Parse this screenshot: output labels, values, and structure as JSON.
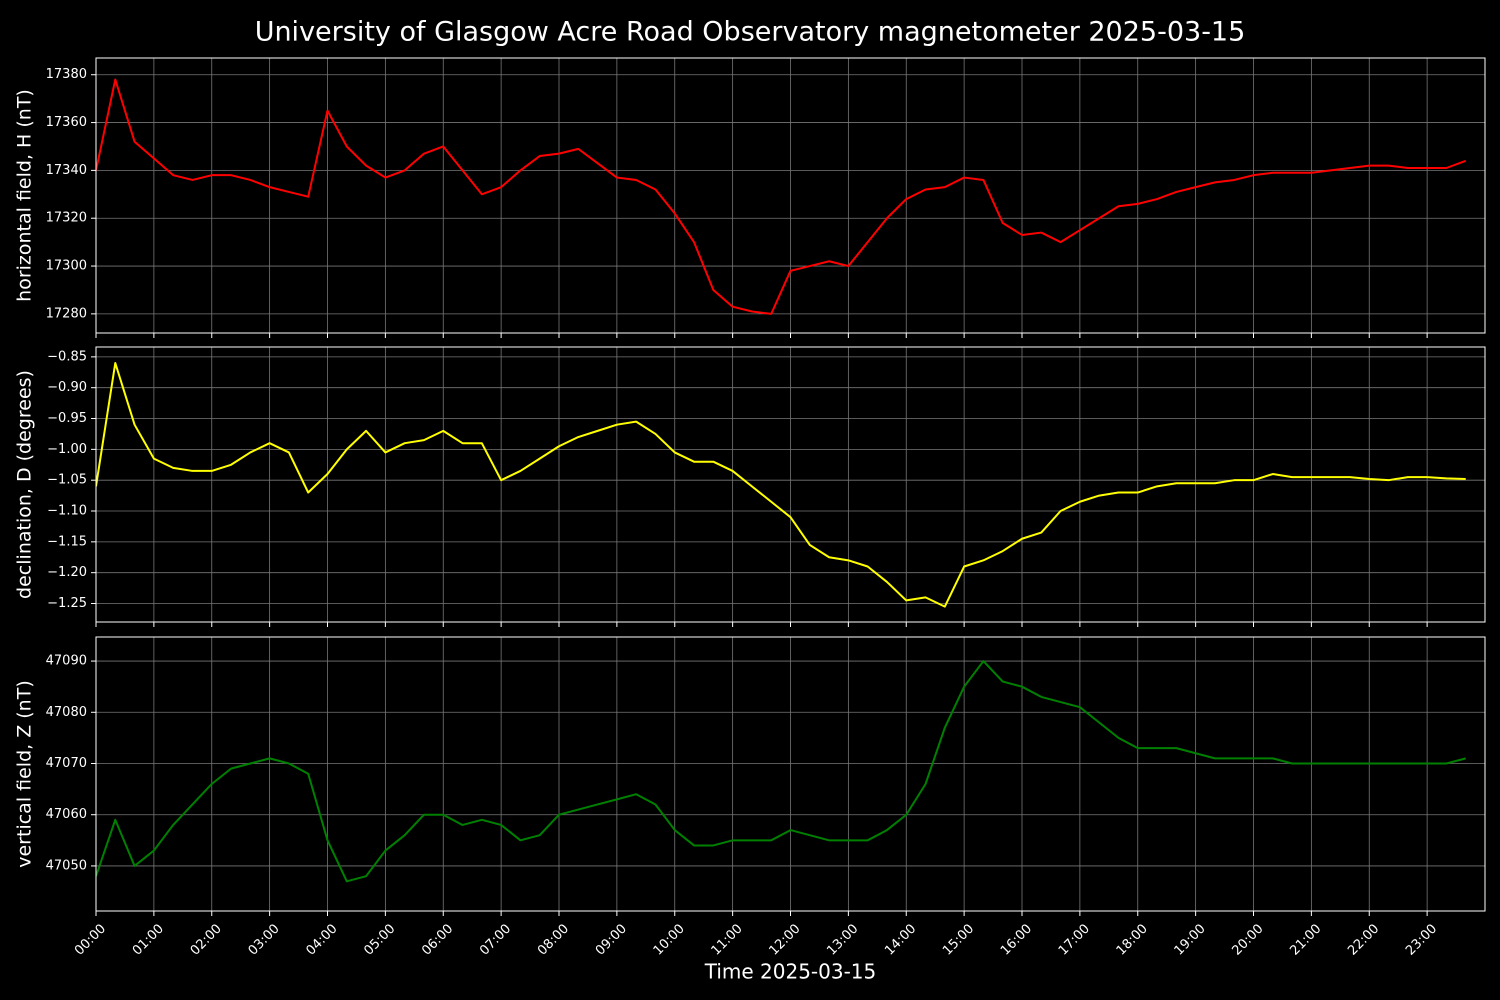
{
  "title": "University of Glasgow Acre Road Observatory magnetometer 2025-03-15",
  "chart_data": [
    {
      "type": "line",
      "ylabel": "horizontal field, H (nT)",
      "x": [
        "00:00",
        "00:20",
        "00:40",
        "01:00",
        "01:20",
        "01:40",
        "02:00",
        "02:20",
        "02:40",
        "03:00",
        "03:20",
        "03:40",
        "04:00",
        "04:20",
        "04:40",
        "05:00",
        "05:20",
        "05:40",
        "06:00",
        "06:20",
        "06:40",
        "07:00",
        "07:20",
        "07:40",
        "08:00",
        "08:20",
        "08:40",
        "09:00",
        "09:20",
        "09:40",
        "10:00",
        "10:20",
        "10:40",
        "11:00",
        "11:20",
        "11:40",
        "12:00",
        "12:20",
        "12:40",
        "13:00",
        "13:20",
        "13:40",
        "14:00",
        "14:20",
        "14:40",
        "15:00",
        "15:20",
        "15:40",
        "16:00",
        "16:20",
        "16:40",
        "17:00",
        "17:20",
        "17:40",
        "18:00",
        "18:20",
        "18:40",
        "19:00",
        "19:20",
        "19:40",
        "20:00",
        "20:20",
        "20:40",
        "21:00",
        "21:20",
        "21:40",
        "22:00",
        "22:20",
        "22:40",
        "23:00",
        "23:20",
        "23:40"
      ],
      "xlim": [
        "00:00",
        "24:00"
      ],
      "ylim": [
        17272,
        17387
      ],
      "yticks": [
        17280,
        17300,
        17320,
        17340,
        17360,
        17380
      ],
      "grid": true,
      "series": [
        {
          "color": "#ff0000",
          "values": [
            17340,
            17378,
            17352,
            17345,
            17338,
            17336,
            17338,
            17338,
            17336,
            17333,
            17331,
            17329,
            17365,
            17350,
            17342,
            17337,
            17340,
            17347,
            17350,
            17340,
            17330,
            17333,
            17340,
            17346,
            17347,
            17349,
            17343,
            17337,
            17336,
            17332,
            17322,
            17310,
            17290,
            17283,
            17281,
            17280,
            17298,
            17300,
            17302,
            17300,
            17310,
            17320,
            17328,
            17332,
            17333,
            17337,
            17336,
            17318,
            17313,
            17314,
            17310,
            17315,
            17320,
            17325,
            17326,
            17328,
            17331,
            17333,
            17335,
            17336,
            17338,
            17339,
            17339,
            17339,
            17340,
            17341,
            17342,
            17342,
            17341,
            17341,
            17341,
            17344
          ]
        }
      ]
    },
    {
      "type": "line",
      "ylabel": "declination, D (degrees)",
      "x": [
        "00:00",
        "00:20",
        "00:40",
        "01:00",
        "01:20",
        "01:40",
        "02:00",
        "02:20",
        "02:40",
        "03:00",
        "03:20",
        "03:40",
        "04:00",
        "04:20",
        "04:40",
        "05:00",
        "05:20",
        "05:40",
        "06:00",
        "06:20",
        "06:40",
        "07:00",
        "07:20",
        "07:40",
        "08:00",
        "08:20",
        "08:40",
        "09:00",
        "09:20",
        "09:40",
        "10:00",
        "10:20",
        "10:40",
        "11:00",
        "11:20",
        "11:40",
        "12:00",
        "12:20",
        "12:40",
        "13:00",
        "13:20",
        "13:40",
        "14:00",
        "14:20",
        "14:40",
        "15:00",
        "15:20",
        "15:40",
        "16:00",
        "16:20",
        "16:40",
        "17:00",
        "17:20",
        "17:40",
        "18:00",
        "18:20",
        "18:40",
        "19:00",
        "19:20",
        "19:40",
        "20:00",
        "20:20",
        "20:40",
        "21:00",
        "21:20",
        "21:40",
        "22:00",
        "22:20",
        "22:40",
        "23:00",
        "23:20",
        "23:40"
      ],
      "xlim": [
        "00:00",
        "24:00"
      ],
      "ylim": [
        -1.28,
        -0.834
      ],
      "yticks": [
        {
          "value": -1.25,
          "label": "−1.25"
        },
        {
          "value": -1.2,
          "label": "−1.20"
        },
        {
          "value": -1.15,
          "label": "−1.15"
        },
        {
          "value": -1.1,
          "label": "−1.10"
        },
        {
          "value": -1.05,
          "label": "−1.05"
        },
        {
          "value": -1.0,
          "label": "−1.00"
        },
        {
          "value": -0.95,
          "label": "−0.95"
        },
        {
          "value": -0.9,
          "label": "−0.90"
        },
        {
          "value": -0.85,
          "label": "−0.85"
        }
      ],
      "grid": true,
      "series": [
        {
          "color": "#ffff00",
          "values": [
            -1.06,
            -0.86,
            -0.96,
            -1.015,
            -1.03,
            -1.035,
            -1.035,
            -1.025,
            -1.005,
            -0.99,
            -1.005,
            -1.07,
            -1.04,
            -1.0,
            -0.97,
            -1.005,
            -0.99,
            -0.985,
            -0.97,
            -0.99,
            -0.99,
            -1.05,
            -1.035,
            -1.015,
            -0.995,
            -0.98,
            -0.97,
            -0.96,
            -0.955,
            -0.975,
            -1.005,
            -1.02,
            -1.02,
            -1.035,
            -1.06,
            -1.085,
            -1.11,
            -1.155,
            -1.175,
            -1.18,
            -1.19,
            -1.215,
            -1.245,
            -1.24,
            -1.255,
            -1.19,
            -1.18,
            -1.165,
            -1.145,
            -1.135,
            -1.1,
            -1.085,
            -1.075,
            -1.07,
            -1.07,
            -1.06,
            -1.055,
            -1.055,
            -1.055,
            -1.05,
            -1.05,
            -1.04,
            -1.045,
            -1.045,
            -1.045,
            -1.045,
            -1.048,
            -1.05,
            -1.045,
            -1.045,
            -1.047,
            -1.048
          ]
        }
      ]
    },
    {
      "type": "line",
      "ylabel": "vertical field, Z (nT)",
      "xlabel": "Time 2025-03-15",
      "x": [
        "00:00",
        "00:20",
        "00:40",
        "01:00",
        "01:20",
        "01:40",
        "02:00",
        "02:20",
        "02:40",
        "03:00",
        "03:20",
        "03:40",
        "04:00",
        "04:20",
        "04:40",
        "05:00",
        "05:20",
        "05:40",
        "06:00",
        "06:20",
        "06:40",
        "07:00",
        "07:20",
        "07:40",
        "08:00",
        "08:20",
        "08:40",
        "09:00",
        "09:20",
        "09:40",
        "10:00",
        "10:20",
        "10:40",
        "11:00",
        "11:20",
        "11:40",
        "12:00",
        "12:20",
        "12:40",
        "13:00",
        "13:20",
        "13:40",
        "14:00",
        "14:20",
        "14:40",
        "15:00",
        "15:20",
        "15:40",
        "16:00",
        "16:20",
        "16:40",
        "17:00",
        "17:20",
        "17:40",
        "18:00",
        "18:20",
        "18:40",
        "19:00",
        "19:20",
        "19:40",
        "20:00",
        "20:20",
        "20:40",
        "21:00",
        "21:20",
        "21:40",
        "22:00",
        "22:20",
        "22:40",
        "23:00",
        "23:20",
        "23:40"
      ],
      "xlim": [
        "00:00",
        "24:00"
      ],
      "xticks": [
        "00:00",
        "01:00",
        "02:00",
        "03:00",
        "04:00",
        "05:00",
        "06:00",
        "07:00",
        "08:00",
        "09:00",
        "10:00",
        "11:00",
        "12:00",
        "13:00",
        "14:00",
        "15:00",
        "16:00",
        "17:00",
        "18:00",
        "19:00",
        "20:00",
        "21:00",
        "22:00",
        "23:00"
      ],
      "ylim": [
        47041.2,
        47094.7
      ],
      "yticks": [
        47050,
        47060,
        47070,
        47080,
        47090
      ],
      "grid": true,
      "series": [
        {
          "color": "#008000",
          "values": [
            47048,
            47059,
            47050,
            47053,
            47058,
            47062,
            47066,
            47069,
            47070,
            47071,
            47070,
            47068,
            47055,
            47047,
            47048,
            47053,
            47056,
            47060,
            47060,
            47058,
            47059,
            47058,
            47055,
            47056,
            47060,
            47061,
            47062,
            47063,
            47064,
            47062,
            47057,
            47054,
            47054,
            47055,
            47055,
            47055,
            47057,
            47056,
            47055,
            47055,
            47055,
            47057,
            47060,
            47066,
            47077,
            47085,
            47090,
            47086,
            47085,
            47083,
            47082,
            47081,
            47078,
            47075,
            47073,
            47073,
            47073,
            47072,
            47071,
            47071,
            47071,
            47071,
            47070,
            47070,
            47070,
            47070,
            47070,
            47070,
            47070,
            47070,
            47070,
            47071
          ]
        }
      ]
    }
  ]
}
